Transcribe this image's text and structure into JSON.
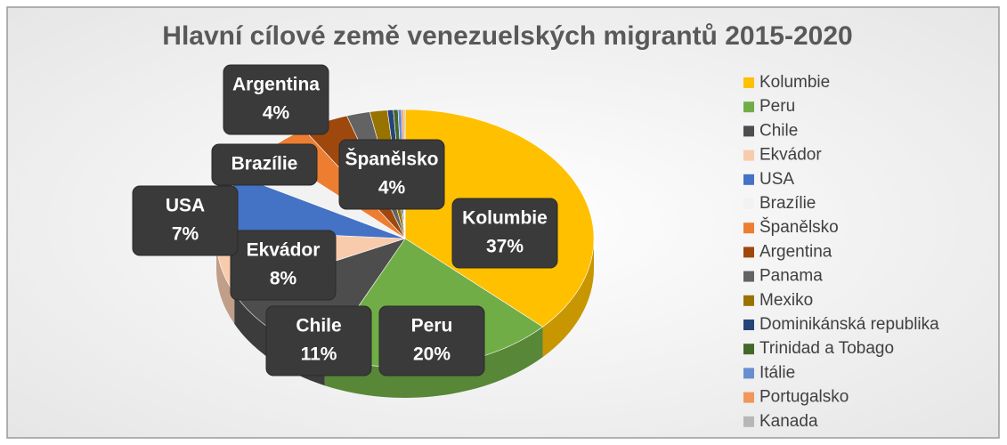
{
  "chart_data": {
    "type": "pie",
    "title": "Hlavní cílové země venezuelských migrantů 2015-2020",
    "categories": [
      "Kolumbie",
      "Peru",
      "Chile",
      "Ekvádor",
      "USA",
      "Brazílie",
      "Španělsko",
      "Argentina",
      "Panama",
      "Mexiko",
      "Dominikánská republika",
      "Trinidad a Tobago",
      "Itálie",
      "Portugalsko",
      "Kanada"
    ],
    "values": [
      37,
      20,
      11,
      8,
      7,
      4,
      4,
      4,
      2,
      1.5,
      0.5,
      0.4,
      0.3,
      0.2,
      0.1
    ],
    "value_labels": [
      "37%",
      "20%",
      "11%",
      "8%",
      "7%",
      null,
      "4%",
      "4%",
      null,
      null,
      null,
      null,
      null,
      null,
      null
    ],
    "colors": [
      "#FFC000",
      "#70AD47",
      "#4D4D4D",
      "#F8CBAD",
      "#4472C4",
      "#F2F2F2",
      "#ED7D31",
      "#9E480E",
      "#636363",
      "#997300",
      "#264478",
      "#43682B",
      "#698ED0",
      "#F1975A",
      "#B7B7B7"
    ],
    "legend": "right"
  }
}
